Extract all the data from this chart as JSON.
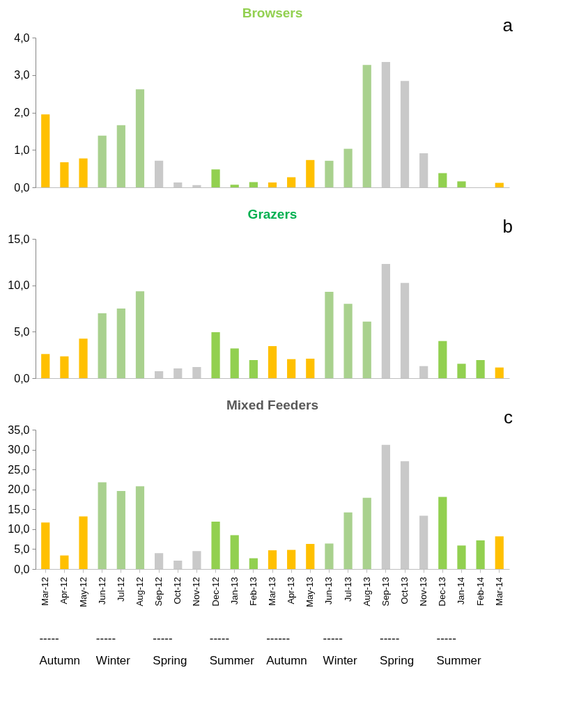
{
  "chart_data": [
    {
      "type": "bar",
      "title": "Browsers",
      "annotations": [
        "a"
      ],
      "categories": [
        null,
        null,
        null,
        null,
        null,
        null,
        null,
        null,
        null,
        null,
        null,
        null,
        null,
        null,
        null,
        null,
        null,
        null,
        null,
        null,
        null,
        null,
        null,
        null,
        null
      ],
      "values": [
        1.95,
        0.67,
        0.77,
        1.38,
        1.66,
        2.62,
        0.71,
        0.13,
        0.06,
        0.48,
        0.07,
        0.14,
        0.13,
        0.27,
        0.73,
        0.71,
        1.03,
        3.27,
        3.35,
        2.84,
        0.91,
        0.38,
        0.16,
        0,
        0.12
      ],
      "colors": [
        "#ffc000",
        "#ffc000",
        "#ffc000",
        "#a9d18e",
        "#a9d18e",
        "#a9d18e",
        "#c9c9c9",
        "#c9c9c9",
        "#c9c9c9",
        "#92d050",
        "#92d050",
        "#92d050",
        "#ffc000",
        "#ffc000",
        "#ffc000",
        "#a9d18e",
        "#a9d18e",
        "#a9d18e",
        "#c9c9c9",
        "#c9c9c9",
        "#c9c9c9",
        "#92d050",
        "#92d050",
        "#92d050",
        "#ffc000"
      ],
      "ylim": [
        0,
        4
      ],
      "yticks": [
        {
          "value": 0,
          "label": "0,0"
        },
        {
          "value": 1,
          "label": "1,0"
        },
        {
          "value": 2,
          "label": "2,0"
        },
        {
          "value": 3,
          "label": "3,0"
        },
        {
          "value": 4,
          "label": "4,0"
        }
      ],
      "grid": false,
      "tick_labels": "y"
    },
    {
      "type": "bar",
      "title": "Grazers",
      "annotations": [
        "b"
      ],
      "categories": [
        null,
        null,
        null,
        null,
        null,
        null,
        null,
        null,
        null,
        null,
        null,
        null,
        null,
        null,
        null,
        null,
        null,
        null,
        null,
        null,
        null,
        null,
        null,
        null,
        null
      ],
      "values": [
        2.6,
        2.35,
        4.25,
        7.0,
        7.5,
        9.35,
        0.75,
        1.05,
        1.2,
        4.95,
        3.2,
        1.95,
        3.45,
        2.05,
        2.1,
        9.3,
        8.0,
        6.1,
        12.3,
        10.25,
        1.3,
        4.0,
        1.55,
        1.95,
        1.15
      ],
      "colors": [
        "#ffc000",
        "#ffc000",
        "#ffc000",
        "#a9d18e",
        "#a9d18e",
        "#a9d18e",
        "#c9c9c9",
        "#c9c9c9",
        "#c9c9c9",
        "#92d050",
        "#92d050",
        "#92d050",
        "#ffc000",
        "#ffc000",
        "#ffc000",
        "#a9d18e",
        "#a9d18e",
        "#a9d18e",
        "#c9c9c9",
        "#c9c9c9",
        "#c9c9c9",
        "#92d050",
        "#92d050",
        "#92d050",
        "#ffc000"
      ],
      "ylim": [
        0,
        15
      ],
      "yticks": [
        {
          "value": 0,
          "label": "0,0"
        },
        {
          "value": 5,
          "label": "5,0"
        },
        {
          "value": 10,
          "label": "10,0"
        },
        {
          "value": 15,
          "label": "15,0"
        }
      ],
      "grid": false,
      "tick_labels": "y"
    },
    {
      "type": "bar",
      "title": "Mixed Feeders",
      "annotations": [
        "c",
        "-----",
        "Autumn",
        "-----",
        "Winter",
        "-----",
        "Spring",
        "-----",
        "Summer",
        "------",
        "Autumn",
        "-----",
        "Winter",
        "-----",
        "Spring",
        "-----",
        "Summer"
      ],
      "categories": [
        "Mar-12",
        "Apr-12",
        "May-12",
        "Jun-12",
        "Jul-12",
        "Aug-12",
        "Sep-12",
        "Oct-12",
        "Nov-12",
        "Dec-12",
        "Jan-13",
        "Feb-13",
        "Mar-13",
        "Apr-13",
        "May-13",
        "Jun-13",
        "Jul-13",
        "Aug-13",
        "Sep-13",
        "Oct-13",
        "Nov-13",
        "Dec-13",
        "Jan-14",
        "Feb-14",
        "Mar-14"
      ],
      "values": [
        11.7,
        3.4,
        13.2,
        21.8,
        19.6,
        20.8,
        4.0,
        2.1,
        4.5,
        11.9,
        8.5,
        2.7,
        4.7,
        4.8,
        6.3,
        6.4,
        14.2,
        17.9,
        31.2,
        27.1,
        13.4,
        18.1,
        5.9,
        7.2,
        8.2
      ],
      "colors": [
        "#ffc000",
        "#ffc000",
        "#ffc000",
        "#a9d18e",
        "#a9d18e",
        "#a9d18e",
        "#c9c9c9",
        "#c9c9c9",
        "#c9c9c9",
        "#92d050",
        "#92d050",
        "#92d050",
        "#ffc000",
        "#ffc000",
        "#ffc000",
        "#a9d18e",
        "#a9d18e",
        "#a9d18e",
        "#c9c9c9",
        "#c9c9c9",
        "#c9c9c9",
        "#92d050",
        "#92d050",
        "#92d050",
        "#ffc000"
      ],
      "ylim": [
        0,
        35
      ],
      "yticks": [
        {
          "value": 0,
          "label": "0,0"
        },
        {
          "value": 5,
          "label": "5,0"
        },
        {
          "value": 10,
          "label": "10,0"
        },
        {
          "value": 15,
          "label": "15,0"
        },
        {
          "value": 20,
          "label": "20,0"
        },
        {
          "value": 25,
          "label": "25,0"
        },
        {
          "value": 30,
          "label": "30,0"
        },
        {
          "value": 35,
          "label": "35,0"
        }
      ],
      "grid": false
    }
  ]
}
